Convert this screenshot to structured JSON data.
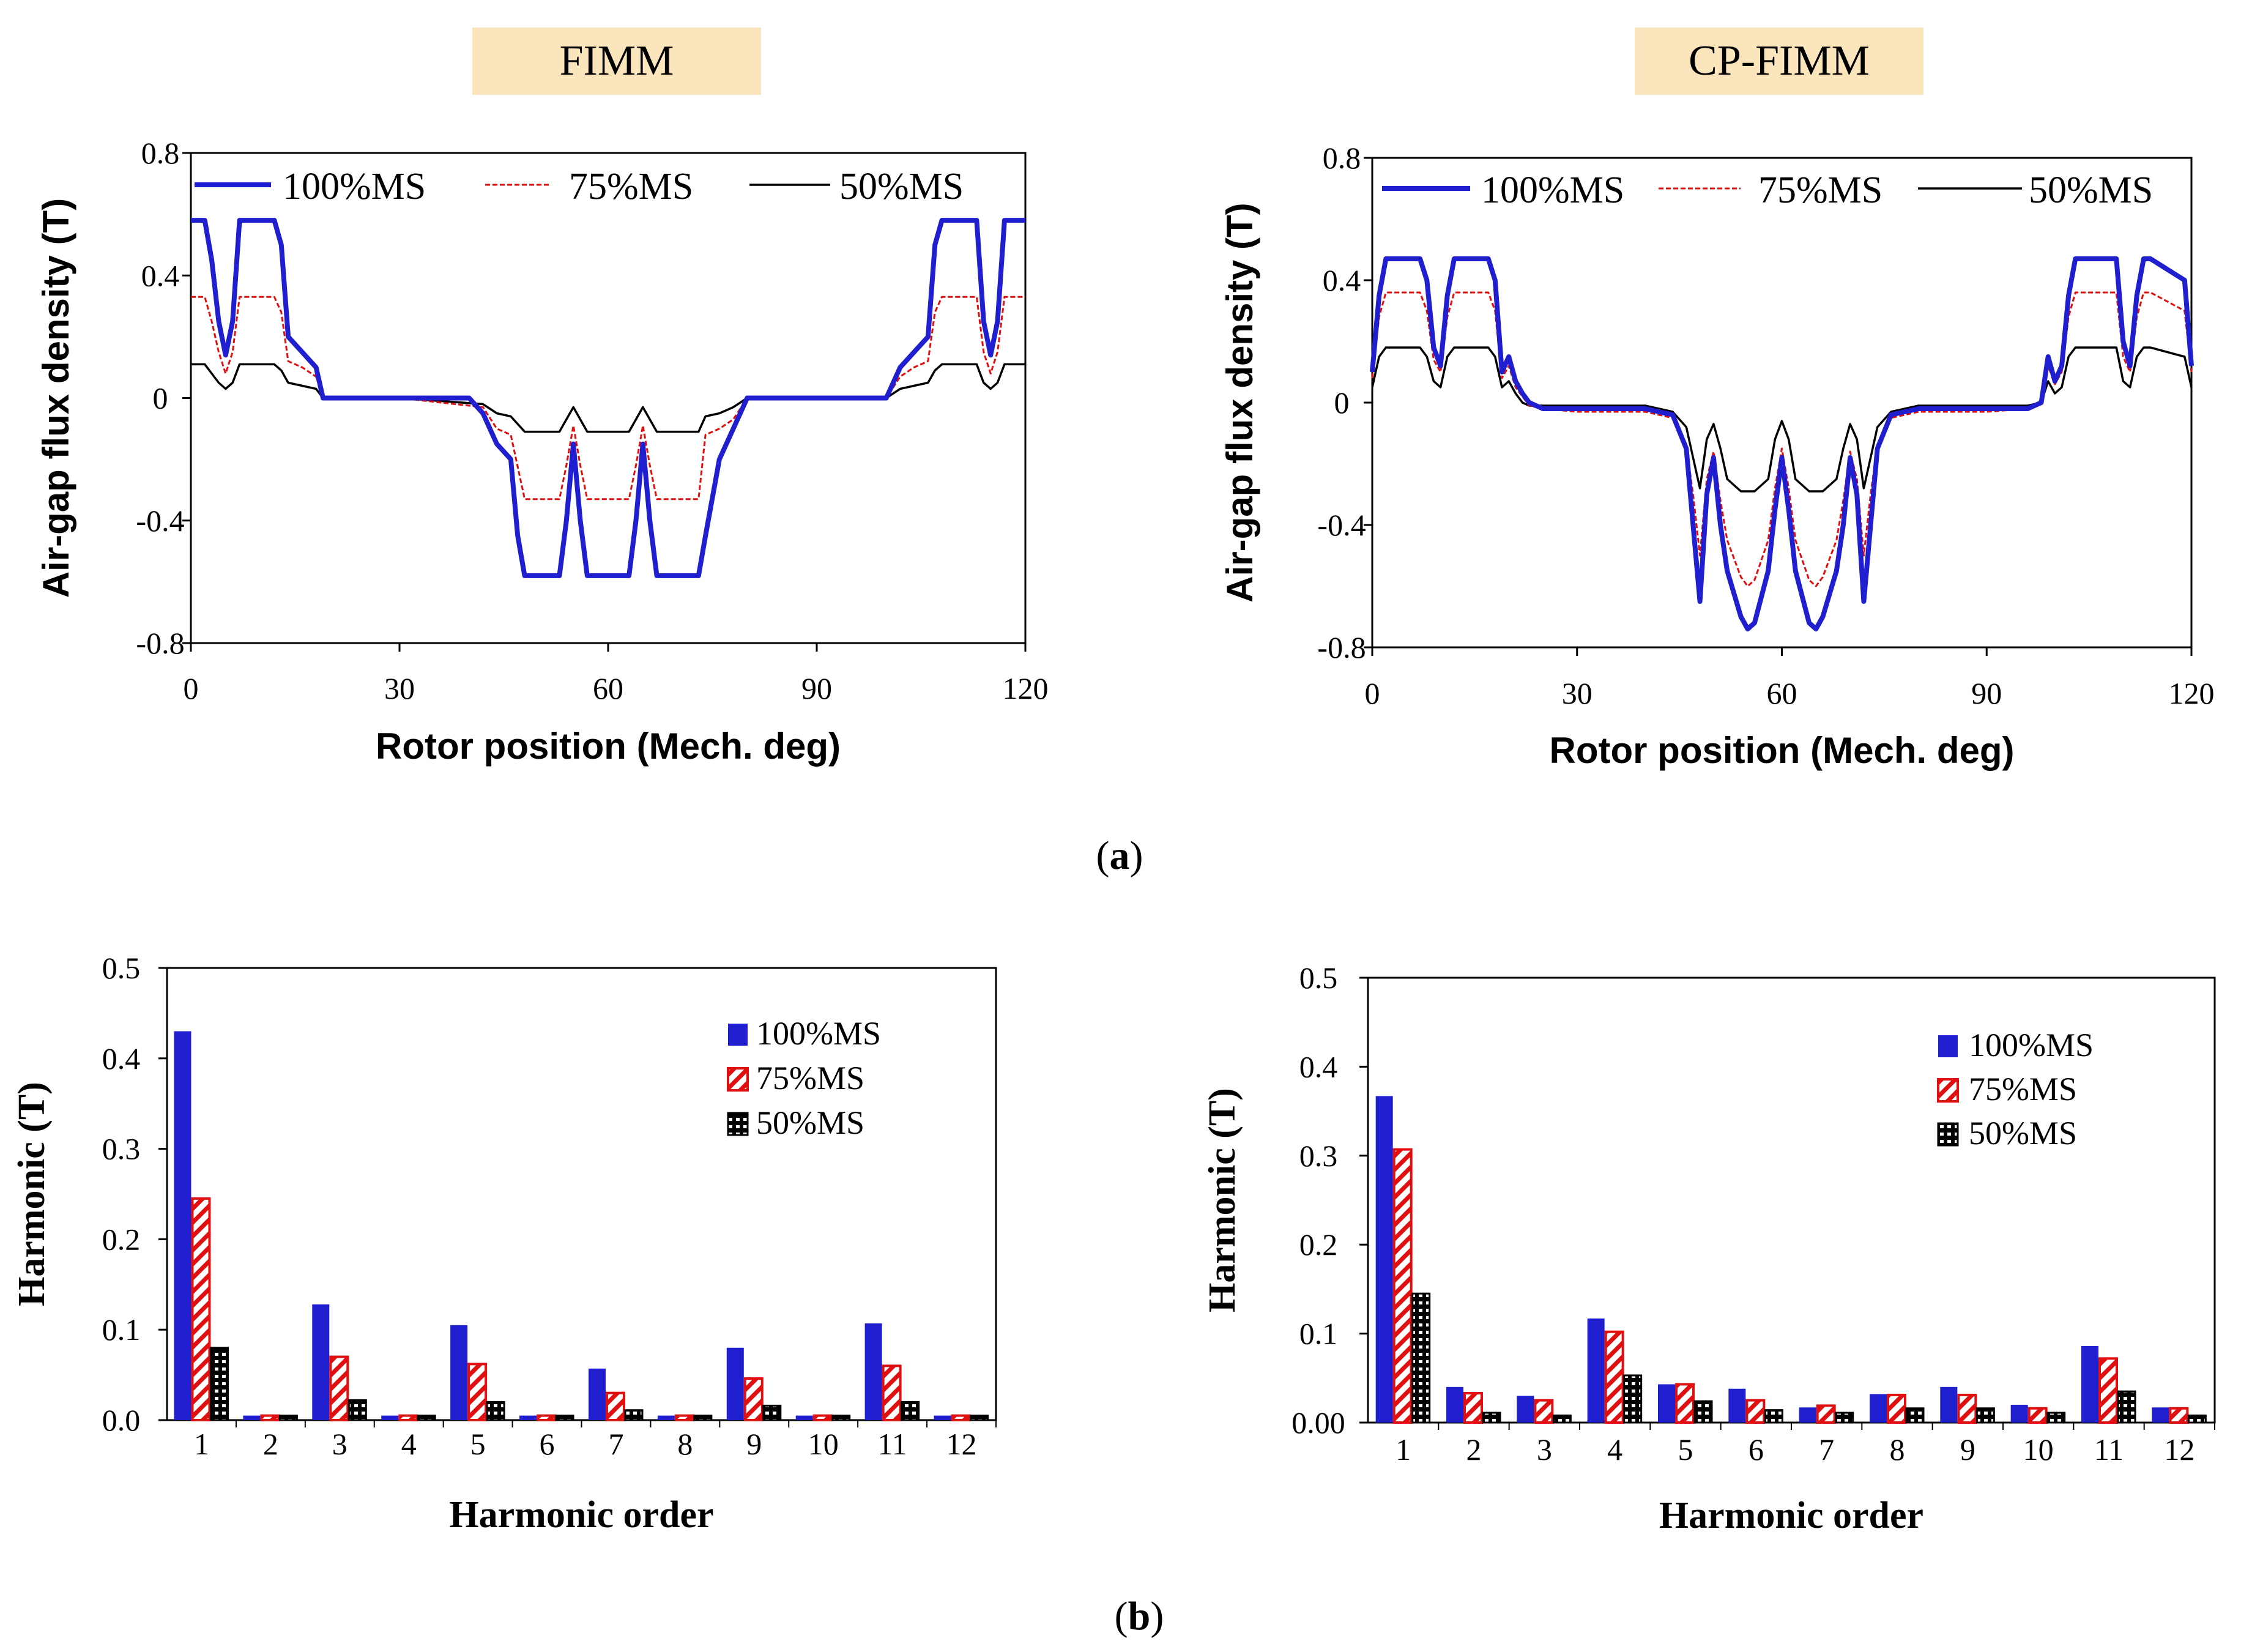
{
  "figure": {
    "caption_a": {
      "open": "(",
      "letter": "a",
      "close": ")"
    },
    "caption_b": {
      "open": "(",
      "letter": "b",
      "close": ")"
    }
  },
  "colors": {
    "blue": "#1f1fd0",
    "red": "#e01010",
    "black": "#000000",
    "title_bg": "#fbe5bd"
  },
  "chart_data": [
    {
      "id": "flux-fimm",
      "type": "line",
      "title": "FIMM",
      "xlabel": "Rotor position (Mech. deg)",
      "ylabel": "Air-gap flux density (T)",
      "xlim": [
        0,
        120
      ],
      "ylim": [
        -0.8,
        0.8
      ],
      "xticks": [
        0,
        30,
        60,
        90,
        120
      ],
      "yticks": [
        0.8,
        0.4,
        0,
        -0.4,
        -0.8
      ],
      "xtick_labels": [
        "0",
        "30",
        "60",
        "90",
        "120"
      ],
      "ytick_labels": [
        "0.8",
        "0.4",
        "0",
        "-0.4",
        "-0.8"
      ],
      "legend": [
        "100%MS",
        "75%MS",
        "50%MS"
      ],
      "series": [
        {
          "name": "100%MS",
          "x": [
            0,
            2,
            3,
            4,
            5,
            6,
            7,
            12,
            13,
            14,
            16,
            18,
            19,
            20,
            24,
            30,
            40,
            42,
            44,
            46,
            47,
            48,
            53,
            54,
            55,
            56,
            57,
            58,
            63,
            64,
            65,
            66,
            67,
            68,
            73,
            74,
            76,
            78,
            80,
            86,
            90,
            96,
            100,
            102,
            104,
            106,
            107,
            108,
            113,
            114,
            115,
            116,
            117,
            118,
            120
          ],
          "y": [
            0.58,
            0.58,
            0.45,
            0.25,
            0.14,
            0.25,
            0.58,
            0.58,
            0.5,
            0.2,
            0.15,
            0.1,
            0.0,
            0.0,
            0.0,
            0.0,
            0.0,
            -0.05,
            -0.15,
            -0.2,
            -0.45,
            -0.58,
            -0.58,
            -0.4,
            -0.15,
            -0.4,
            -0.58,
            -0.58,
            -0.58,
            -0.4,
            -0.15,
            -0.4,
            -0.58,
            -0.58,
            -0.58,
            -0.45,
            -0.2,
            -0.1,
            0.0,
            0.0,
            0.0,
            0.0,
            0.0,
            0.1,
            0.15,
            0.2,
            0.5,
            0.58,
            0.58,
            0.25,
            0.14,
            0.25,
            0.58,
            0.58,
            0.58
          ]
        },
        {
          "name": "75%MS",
          "x": [
            0,
            2,
            3,
            4,
            5,
            6,
            7,
            12,
            13,
            14,
            16,
            18,
            19,
            20,
            30,
            42,
            44,
            46,
            48,
            53,
            54,
            55,
            56,
            57,
            58,
            63,
            64,
            65,
            66,
            67,
            68,
            73,
            74,
            76,
            78,
            80,
            90,
            100,
            102,
            104,
            106,
            107,
            108,
            113,
            114,
            115,
            116,
            117,
            118,
            120
          ],
          "y": [
            0.33,
            0.33,
            0.25,
            0.15,
            0.08,
            0.15,
            0.33,
            0.33,
            0.28,
            0.12,
            0.1,
            0.07,
            0.0,
            0.0,
            0.0,
            -0.03,
            -0.1,
            -0.12,
            -0.33,
            -0.33,
            -0.22,
            -0.09,
            -0.22,
            -0.33,
            -0.33,
            -0.33,
            -0.22,
            -0.09,
            -0.22,
            -0.33,
            -0.33,
            -0.33,
            -0.12,
            -0.1,
            -0.07,
            0.0,
            0.0,
            0.0,
            0.07,
            0.1,
            0.12,
            0.28,
            0.33,
            0.33,
            0.15,
            0.08,
            0.15,
            0.33,
            0.33,
            0.33
          ]
        },
        {
          "name": "50%MS",
          "x": [
            0,
            2,
            3,
            4,
            5,
            6,
            7,
            12,
            13,
            14,
            16,
            18,
            19,
            20,
            30,
            42,
            44,
            46,
            48,
            53,
            54,
            55,
            56,
            57,
            58,
            63,
            64,
            65,
            66,
            67,
            68,
            73,
            74,
            76,
            78,
            80,
            90,
            100,
            102,
            104,
            106,
            107,
            108,
            113,
            114,
            115,
            116,
            117,
            118,
            120
          ],
          "y": [
            0.11,
            0.11,
            0.08,
            0.05,
            0.03,
            0.05,
            0.11,
            0.11,
            0.09,
            0.05,
            0.04,
            0.03,
            0.0,
            0.0,
            0.0,
            -0.02,
            -0.05,
            -0.06,
            -0.11,
            -0.11,
            -0.07,
            -0.03,
            -0.07,
            -0.11,
            -0.11,
            -0.11,
            -0.07,
            -0.03,
            -0.07,
            -0.11,
            -0.11,
            -0.11,
            -0.06,
            -0.05,
            -0.03,
            0.0,
            0.0,
            0.0,
            0.03,
            0.04,
            0.05,
            0.09,
            0.11,
            0.11,
            0.05,
            0.03,
            0.05,
            0.11,
            0.11,
            0.11
          ]
        }
      ]
    },
    {
      "id": "flux-cpfimm",
      "type": "line",
      "title": "CP-FIMM",
      "xlabel": "Rotor position (Mech. deg)",
      "ylabel": "Air-gap flux density (T)",
      "xlim": [
        0,
        120
      ],
      "ylim": [
        -0.8,
        0.8
      ],
      "xticks": [
        0,
        30,
        60,
        90,
        120
      ],
      "yticks": [
        0.8,
        0.4,
        0,
        -0.4,
        -0.8
      ],
      "xtick_labels": [
        "0",
        "30",
        "60",
        "90",
        "120"
      ],
      "ytick_labels": [
        "0.8",
        "0.4",
        "0",
        "-0.4",
        "-0.8"
      ],
      "legend": [
        "100%MS",
        "75%MS",
        "50%MS"
      ],
      "series": [
        {
          "name": "100%MS",
          "x": [
            0,
            1,
            2,
            7,
            8,
            9,
            10,
            11,
            12,
            17,
            18,
            19,
            20,
            21,
            22,
            23,
            25,
            30,
            40,
            44,
            46,
            47,
            48,
            49,
            50,
            51,
            52,
            54,
            55,
            56,
            58,
            59,
            60,
            61,
            62,
            64,
            65,
            66,
            68,
            69,
            70,
            71,
            72,
            73,
            74,
            76,
            80,
            90,
            96,
            98,
            99,
            100,
            101,
            102,
            103,
            104,
            109,
            110,
            111,
            112,
            113,
            114,
            119,
            120
          ],
          "y": [
            0.1,
            0.35,
            0.47,
            0.47,
            0.4,
            0.18,
            0.12,
            0.35,
            0.47,
            0.47,
            0.4,
            0.1,
            0.15,
            0.07,
            0.03,
            0.0,
            -0.02,
            -0.02,
            -0.02,
            -0.04,
            -0.15,
            -0.4,
            -0.65,
            -0.3,
            -0.18,
            -0.4,
            -0.55,
            -0.7,
            -0.74,
            -0.72,
            -0.55,
            -0.35,
            -0.18,
            -0.35,
            -0.55,
            -0.72,
            -0.74,
            -0.7,
            -0.55,
            -0.4,
            -0.18,
            -0.3,
            -0.65,
            -0.4,
            -0.15,
            -0.04,
            -0.02,
            -0.02,
            -0.02,
            0.0,
            0.15,
            0.07,
            0.12,
            0.35,
            0.47,
            0.47,
            0.47,
            0.2,
            0.12,
            0.35,
            0.47,
            0.47,
            0.4,
            0.12
          ]
        },
        {
          "name": "75%MS",
          "x": [
            0,
            1,
            2,
            7,
            8,
            9,
            10,
            11,
            12,
            17,
            18,
            19,
            20,
            21,
            22,
            23,
            25,
            30,
            40,
            44,
            46,
            47,
            48,
            49,
            50,
            51,
            52,
            54,
            55,
            56,
            58,
            59,
            60,
            61,
            62,
            64,
            65,
            66,
            68,
            69,
            70,
            71,
            72,
            73,
            74,
            76,
            80,
            90,
            96,
            98,
            99,
            100,
            101,
            102,
            103,
            104,
            109,
            110,
            111,
            112,
            113,
            114,
            119,
            120
          ],
          "y": [
            0.08,
            0.28,
            0.36,
            0.36,
            0.3,
            0.14,
            0.1,
            0.28,
            0.36,
            0.36,
            0.3,
            0.08,
            0.12,
            0.05,
            0.02,
            -0.01,
            -0.02,
            -0.03,
            -0.03,
            -0.05,
            -0.14,
            -0.3,
            -0.5,
            -0.25,
            -0.16,
            -0.32,
            -0.45,
            -0.57,
            -0.6,
            -0.58,
            -0.45,
            -0.28,
            -0.15,
            -0.28,
            -0.45,
            -0.58,
            -0.6,
            -0.57,
            -0.45,
            -0.32,
            -0.16,
            -0.25,
            -0.5,
            -0.3,
            -0.14,
            -0.05,
            -0.03,
            -0.03,
            -0.02,
            0.0,
            0.12,
            0.06,
            0.1,
            0.28,
            0.36,
            0.36,
            0.36,
            0.15,
            0.1,
            0.28,
            0.36,
            0.36,
            0.3,
            0.1
          ]
        },
        {
          "name": "50%MS",
          "x": [
            0,
            1,
            2,
            7,
            8,
            9,
            10,
            11,
            12,
            17,
            18,
            19,
            20,
            21,
            22,
            23,
            25,
            30,
            40,
            44,
            46,
            47,
            48,
            49,
            50,
            51,
            52,
            54,
            55,
            56,
            58,
            59,
            60,
            61,
            62,
            64,
            65,
            66,
            68,
            69,
            70,
            71,
            72,
            73,
            74,
            76,
            80,
            90,
            96,
            98,
            99,
            100,
            101,
            102,
            103,
            104,
            109,
            110,
            111,
            112,
            113,
            114,
            119,
            120
          ],
          "y": [
            0.05,
            0.15,
            0.18,
            0.18,
            0.15,
            0.07,
            0.05,
            0.15,
            0.18,
            0.18,
            0.15,
            0.05,
            0.07,
            0.03,
            0.0,
            -0.01,
            -0.01,
            -0.01,
            -0.01,
            -0.03,
            -0.08,
            -0.18,
            -0.28,
            -0.12,
            -0.07,
            -0.15,
            -0.25,
            -0.29,
            -0.29,
            -0.29,
            -0.25,
            -0.12,
            -0.06,
            -0.12,
            -0.25,
            -0.29,
            -0.29,
            -0.29,
            -0.25,
            -0.15,
            -0.07,
            -0.12,
            -0.28,
            -0.18,
            -0.08,
            -0.03,
            -0.01,
            -0.01,
            -0.01,
            0.0,
            0.07,
            0.03,
            0.05,
            0.15,
            0.18,
            0.18,
            0.18,
            0.07,
            0.05,
            0.15,
            0.18,
            0.18,
            0.15,
            0.05
          ]
        }
      ]
    },
    {
      "id": "harm-fimm",
      "type": "bar",
      "xlabel": "Harmonic order",
      "ylabel": "Harmonic (T)",
      "ylim": [
        0,
        0.5
      ],
      "yticks": [
        0.0,
        0.1,
        0.2,
        0.3,
        0.4,
        0.5
      ],
      "ytick_labels": [
        "0.0",
        "0.1",
        "0.2",
        "0.3",
        "0.4",
        "0.5"
      ],
      "categories": [
        "1",
        "2",
        "3",
        "4",
        "5",
        "6",
        "7",
        "8",
        "9",
        "10",
        "11",
        "12"
      ],
      "legend": [
        "100%MS",
        "75%MS",
        "50%MS"
      ],
      "series": [
        {
          "name": "100%MS",
          "values": [
            0.43,
            0.005,
            0.128,
            0.005,
            0.105,
            0.005,
            0.057,
            0.005,
            0.08,
            0.005,
            0.107,
            0.005
          ]
        },
        {
          "name": "75%MS",
          "values": [
            0.245,
            0.005,
            0.07,
            0.005,
            0.062,
            0.005,
            0.03,
            0.005,
            0.046,
            0.005,
            0.06,
            0.005
          ]
        },
        {
          "name": "50%MS",
          "values": [
            0.08,
            0.005,
            0.022,
            0.005,
            0.02,
            0.005,
            0.011,
            0.005,
            0.016,
            0.005,
            0.02,
            0.005
          ]
        }
      ]
    },
    {
      "id": "harm-cpfimm",
      "type": "bar",
      "xlabel": "Harmonic order",
      "ylabel": "Harmonic (T)",
      "ylim": [
        0,
        0.5
      ],
      "yticks": [
        0.0,
        0.1,
        0.2,
        0.3,
        0.4,
        0.5
      ],
      "ytick_labels": [
        "0.00",
        "0.1",
        "0.2",
        "0.3",
        "0.4",
        "0.5"
      ],
      "categories": [
        "1",
        "2",
        "3",
        "4",
        "5",
        "6",
        "7",
        "8",
        "9",
        "10",
        "11",
        "12"
      ],
      "legend": [
        "100%MS",
        "75%MS",
        "50%MS"
      ],
      "series": [
        {
          "name": "100%MS",
          "values": [
            0.367,
            0.04,
            0.03,
            0.117,
            0.043,
            0.038,
            0.017,
            0.032,
            0.04,
            0.02,
            0.086,
            0.017
          ]
        },
        {
          "name": "75%MS",
          "values": [
            0.307,
            0.033,
            0.025,
            0.102,
            0.043,
            0.025,
            0.019,
            0.031,
            0.031,
            0.016,
            0.072,
            0.016
          ]
        },
        {
          "name": "50%MS",
          "values": [
            0.145,
            0.011,
            0.008,
            0.053,
            0.024,
            0.014,
            0.011,
            0.016,
            0.016,
            0.011,
            0.035,
            0.008
          ]
        }
      ]
    }
  ]
}
